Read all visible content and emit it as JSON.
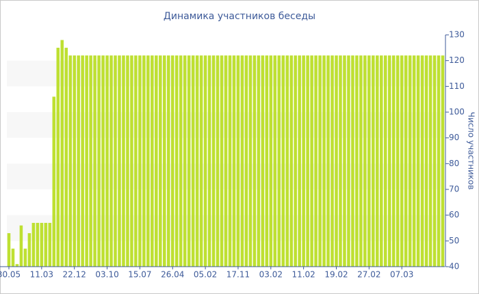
{
  "chart_data": {
    "type": "bar",
    "title": "Динамика участников беседы",
    "y_axis_label": "Число участников",
    "color": "#bee032",
    "categories": [
      "30.05",
      null,
      null,
      null,
      null,
      null,
      null,
      null,
      "11.03",
      null,
      null,
      null,
      null,
      null,
      null,
      null,
      "22.12",
      null,
      null,
      null,
      null,
      null,
      null,
      null,
      "03.10",
      null,
      null,
      null,
      null,
      null,
      null,
      null,
      "15.07",
      null,
      null,
      null,
      null,
      null,
      null,
      null,
      "26.04",
      null,
      null,
      null,
      null,
      null,
      null,
      null,
      "05.02",
      null,
      null,
      null,
      null,
      null,
      null,
      null,
      "17.11",
      null,
      null,
      null,
      null,
      null,
      null,
      null,
      "03.02",
      null,
      null,
      null,
      null,
      null,
      null,
      null,
      "11.02",
      null,
      null,
      null,
      null,
      null,
      null,
      null,
      "19.02",
      null,
      null,
      null,
      null,
      null,
      null,
      null,
      "27.02",
      null,
      null,
      null,
      null,
      null,
      null,
      null,
      "07.03",
      null,
      null,
      null,
      null,
      null,
      null,
      null,
      null,
      null,
      null
    ],
    "values": [
      53,
      47,
      41,
      56,
      47,
      53,
      57,
      57,
      57,
      57,
      57,
      106,
      125,
      128,
      125,
      122,
      122,
      122,
      122,
      122,
      122,
      122,
      122,
      122,
      122,
      122,
      122,
      122,
      122,
      122,
      122,
      122,
      122,
      122,
      122,
      122,
      122,
      122,
      122,
      122,
      122,
      122,
      122,
      122,
      122,
      122,
      122,
      122,
      122,
      122,
      122,
      122,
      122,
      122,
      122,
      122,
      122,
      122,
      122,
      122,
      122,
      122,
      122,
      122,
      122,
      122,
      122,
      122,
      122,
      122,
      122,
      122,
      122,
      122,
      122,
      122,
      122,
      122,
      122,
      122,
      122,
      122,
      122,
      122,
      122,
      122,
      122,
      122,
      122,
      122,
      122,
      122,
      122,
      122,
      122,
      122,
      122,
      122,
      122,
      122,
      122,
      122,
      122,
      122,
      122,
      122,
      122
    ],
    "ylim": [
      40,
      130
    ],
    "yticks": [
      40,
      50,
      60,
      70,
      80,
      90,
      100,
      110,
      120,
      130
    ],
    "y_axis_side": "right",
    "grid_bands": true
  }
}
